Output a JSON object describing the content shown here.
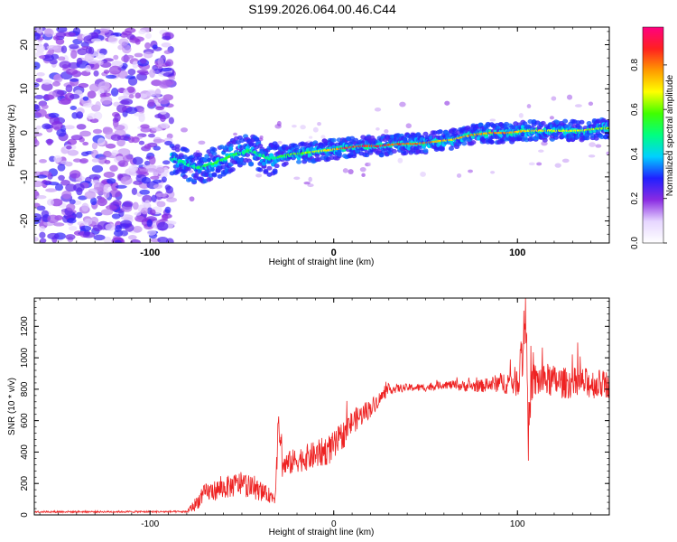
{
  "title": "S199.2026.064.00.46.C44",
  "chart_data": [
    {
      "type": "heatmap",
      "xlabel": "Height of straight line (km)",
      "ylabel": "Frequency (Hz)",
      "xlim": [
        -163,
        150
      ],
      "ylim": [
        -25,
        24
      ],
      "xticks": [
        -100,
        0,
        100
      ],
      "yticks": [
        -20,
        -10,
        0,
        10,
        20
      ],
      "colorbar": {
        "label": "Normalized spectral amplitude",
        "range": [
          0,
          0.97
        ],
        "ticks": [
          0,
          0.2,
          0.4,
          0.6,
          0.8
        ],
        "tick_labels": [
          "0.0",
          "0.2",
          "0.4",
          "0.6",
          "0.8"
        ],
        "colors": [
          "#ffffff",
          "#e6d6ff",
          "#8a2be2",
          "#2020ff",
          "#00d0ff",
          "#00ff80",
          "#40ff00",
          "#ffff00",
          "#ff9900",
          "#ff2020",
          "#ff0080"
        ]
      },
      "ridge": {
        "x": [
          -85,
          -75,
          -65,
          -55,
          -45,
          -35,
          -25,
          -15,
          -5,
          5,
          15,
          25,
          35,
          45,
          55,
          65,
          75,
          85,
          95,
          105,
          115,
          125,
          135,
          145
        ],
        "freq": [
          -6,
          -8,
          -7,
          -5,
          -4,
          -6,
          -5,
          -4.5,
          -4,
          -3.5,
          -3,
          -3,
          -2.5,
          -2.5,
          -2,
          -1.5,
          -0.5,
          0,
          0,
          0.5,
          0.5,
          0.5,
          0.5,
          1
        ],
        "strength": [
          0.45,
          0.5,
          0.55,
          0.55,
          0.5,
          0.5,
          0.6,
          0.65,
          0.7,
          0.85,
          0.9,
          0.9,
          0.85,
          0.85,
          0.8,
          0.75,
          0.8,
          0.8,
          0.8,
          0.75,
          0.7,
          0.7,
          0.7,
          0.65
        ]
      },
      "noise_region_x": [
        -163,
        -88
      ],
      "noise_freq_range": [
        -25,
        24
      ]
    },
    {
      "type": "line",
      "xlabel": "Height of straight line (km)",
      "ylabel": "SNR (10 * v/v)",
      "xlim": [
        -163,
        150
      ],
      "ylim": [
        0,
        1380
      ],
      "xticks": [
        -100,
        0,
        100
      ],
      "yticks": [
        0,
        200,
        400,
        600,
        800,
        1000,
        1200
      ],
      "series": [
        {
          "name": "SNR",
          "color": "#ee2222",
          "envelope_x": [
            -163,
            -80,
            -76,
            -70,
            -60,
            -50,
            -40,
            -32,
            -30,
            -28,
            -20,
            -10,
            0,
            10,
            20,
            30,
            40,
            50,
            60,
            70,
            80,
            90,
            100,
            103,
            105,
            106,
            108,
            115,
            125,
            135,
            150
          ],
          "envelope_y": [
            20,
            20,
            60,
            140,
            170,
            200,
            150,
            110,
            600,
            310,
            350,
            380,
            430,
            590,
            680,
            800,
            810,
            810,
            830,
            820,
            820,
            840,
            850,
            1050,
            1350,
            500,
            850,
            860,
            840,
            840,
            830
          ],
          "noise_amplitude": [
            6,
            6,
            40,
            60,
            70,
            80,
            60,
            40,
            100,
            80,
            80,
            90,
            100,
            80,
            60,
            30,
            25,
            25,
            25,
            35,
            40,
            60,
            100,
            200,
            250,
            200,
            120,
            110,
            100,
            100,
            90
          ]
        }
      ]
    }
  ]
}
